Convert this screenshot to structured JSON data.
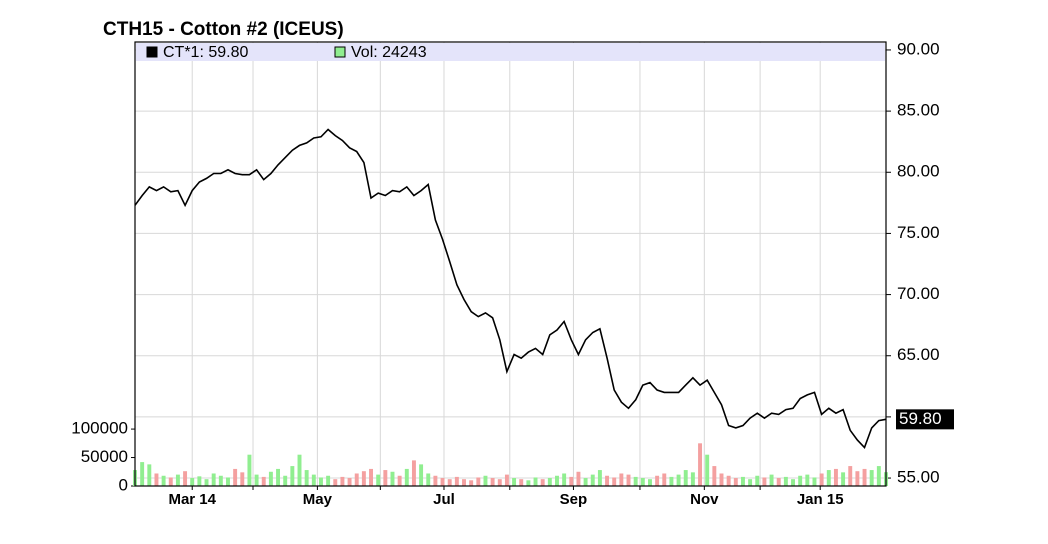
{
  "chart_data": {
    "type": "price-volume",
    "title": "CTH15 - Cotton #2 (ICEUS)",
    "categories": [
      null,
      null,
      null,
      null,
      null,
      null,
      null,
      null,
      null,
      null,
      null,
      null,
      null,
      null,
      null,
      null,
      null,
      null,
      null,
      null,
      null,
      null,
      null,
      null,
      null,
      null,
      null,
      null,
      null,
      null,
      null,
      null,
      null,
      null,
      null,
      null,
      null,
      null,
      null,
      null,
      null,
      null,
      null,
      null,
      null,
      null,
      null,
      null,
      null,
      null,
      null,
      null,
      null,
      null,
      null,
      null,
      null,
      null,
      null,
      null,
      null,
      null,
      null,
      null,
      null,
      null,
      null,
      null,
      null,
      null,
      null,
      null,
      null,
      null,
      null,
      null,
      null,
      null,
      null,
      null,
      null,
      null,
      null,
      null,
      null,
      null,
      null,
      null,
      null,
      null,
      null,
      null,
      null,
      null,
      null,
      null,
      null,
      null,
      null,
      null,
      null,
      null,
      null,
      null,
      null,
      null
    ],
    "xlim": [
      0,
      105
    ],
    "xticks": [
      {
        "value": 8.0,
        "label": "Mar 14"
      },
      {
        "value": 16.5,
        "label": null
      },
      {
        "value": 25.5,
        "label": "May"
      },
      {
        "value": 34.3,
        "label": null
      },
      {
        "value": 43.2,
        "label": "Jul"
      },
      {
        "value": 52.4,
        "label": null
      },
      {
        "value": 61.3,
        "label": "Sep"
      },
      {
        "value": 70.6,
        "label": null
      },
      {
        "value": 79.6,
        "label": "Nov"
      },
      {
        "value": 87.4,
        "label": null
      },
      {
        "value": 95.8,
        "label": "Jan 15"
      }
    ],
    "ylim": [
      54.35,
      90.65
    ],
    "yticks": [
      {
        "value": 55,
        "label": "55.00"
      },
      {
        "value": 60,
        "label": "60.00"
      },
      {
        "value": 65,
        "label": "65.00"
      },
      {
        "value": 70,
        "label": "70.00"
      },
      {
        "value": 75,
        "label": "75.00"
      },
      {
        "value": 80,
        "label": "80.00"
      },
      {
        "value": 85,
        "label": "85.00"
      },
      {
        "value": 90,
        "label": "90.00"
      }
    ],
    "y2lim": [
      0,
      780000
    ],
    "y2ticks": [
      0,
      50000,
      100000
    ],
    "grid": true,
    "last_price": {
      "value": 59.8,
      "label": "59.80"
    },
    "series": [
      {
        "name": "CT*1: 59.80",
        "color": "#000000",
        "values": [
          77.3,
          78.1,
          78.8,
          78.5,
          78.8,
          78.4,
          78.5,
          77.3,
          78.5,
          79.2,
          79.5,
          79.9,
          79.9,
          80.2,
          79.9,
          79.8,
          79.8,
          80.2,
          79.4,
          79.9,
          80.6,
          81.2,
          81.8,
          82.2,
          82.4,
          82.8,
          82.9,
          83.5,
          83.0,
          82.6,
          82.0,
          81.7,
          80.8,
          77.9,
          78.3,
          78.1,
          78.5,
          78.4,
          78.8,
          78.1,
          78.5,
          79.0,
          76.1,
          74.5,
          72.7,
          70.8,
          69.6,
          68.6,
          68.2,
          68.5,
          68.1,
          66.3,
          63.7,
          65.1,
          64.8,
          65.3,
          65.6,
          65.1,
          66.7,
          67.1,
          67.8,
          66.3,
          65.1,
          66.3,
          66.9,
          67.2,
          64.8,
          62.2,
          61.2,
          60.7,
          61.4,
          62.6,
          62.8,
          62.2,
          62.0,
          62.0,
          62.0,
          62.6,
          63.2,
          62.6,
          63.0,
          62.0,
          61.0,
          59.3,
          59.1,
          59.3,
          59.9,
          60.3,
          59.9,
          60.3,
          60.2,
          60.6,
          60.7,
          61.5,
          61.8,
          62.0,
          60.2,
          60.7,
          60.3,
          60.6,
          58.9,
          58.1,
          57.5,
          59.1,
          59.7,
          59.8
        ]
      },
      {
        "name": "Vol: 24243",
        "color": "#90ee90",
        "down_color": "#f4a0a0",
        "axis": "y2",
        "values": [
          28000,
          42000,
          38000,
          22000,
          18000,
          15000,
          20000,
          26000,
          14000,
          17000,
          12000,
          22000,
          18000,
          15000,
          30000,
          24000,
          55000,
          20000,
          16000,
          25000,
          30000,
          18000,
          35000,
          55000,
          28000,
          20000,
          15000,
          18000,
          12000,
          16000,
          14000,
          22000,
          26000,
          30000,
          20000,
          28000,
          25000,
          18000,
          30000,
          45000,
          38000,
          22000,
          18000,
          14000,
          12000,
          16000,
          12000,
          10000,
          15000,
          18000,
          14000,
          12000,
          20000,
          14000,
          12000,
          10000,
          15000,
          12000,
          14000,
          18000,
          22000,
          16000,
          25000,
          14000,
          20000,
          28000,
          18000,
          15000,
          22000,
          20000,
          16000,
          14000,
          12000,
          18000,
          22000,
          16000,
          20000,
          28000,
          24000,
          75000,
          55000,
          35000,
          22000,
          18000,
          14000,
          16000,
          12000,
          18000,
          15000,
          20000,
          14000,
          16000,
          12000,
          18000,
          20000,
          15000,
          22000,
          28000,
          30000,
          24000,
          35000,
          26000,
          30000,
          28000,
          35000,
          24243
        ]
      }
    ]
  }
}
